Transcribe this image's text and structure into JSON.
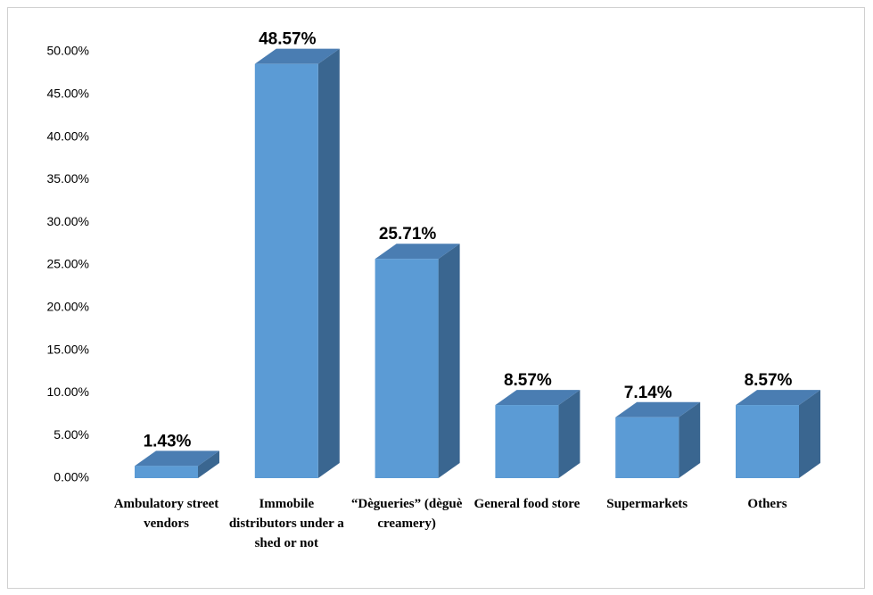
{
  "chart_data": {
    "type": "bar3d",
    "categories": [
      "Ambulatory street vendors",
      "Immobile distributors under a shed or not",
      "“Dègueries” (dèguè creamery)",
      "General food store",
      "Supermarkets",
      "Others"
    ],
    "values": [
      1.43,
      48.57,
      25.71,
      8.57,
      7.14,
      8.57
    ],
    "value_labels": [
      "1.43%",
      "48.57%",
      "25.71%",
      "8.57%",
      "7.14%",
      "8.57%"
    ],
    "color": "#5b9bd5",
    "ylim": [
      0,
      50
    ],
    "yticks": [
      {
        "value": 0,
        "label": "0.00%"
      },
      {
        "value": 5,
        "label": "5.00%"
      },
      {
        "value": 10,
        "label": "10.00%"
      },
      {
        "value": 15,
        "label": "15.00%"
      },
      {
        "value": 20,
        "label": "20.00%"
      },
      {
        "value": 25,
        "label": "25.00%"
      },
      {
        "value": 30,
        "label": "30.00%"
      },
      {
        "value": 35,
        "label": "35.00%"
      },
      {
        "value": 40,
        "label": "40.00%"
      },
      {
        "value": 45,
        "label": "45.00%"
      },
      {
        "value": 50,
        "label": "50.00%"
      }
    ],
    "grid": false
  }
}
